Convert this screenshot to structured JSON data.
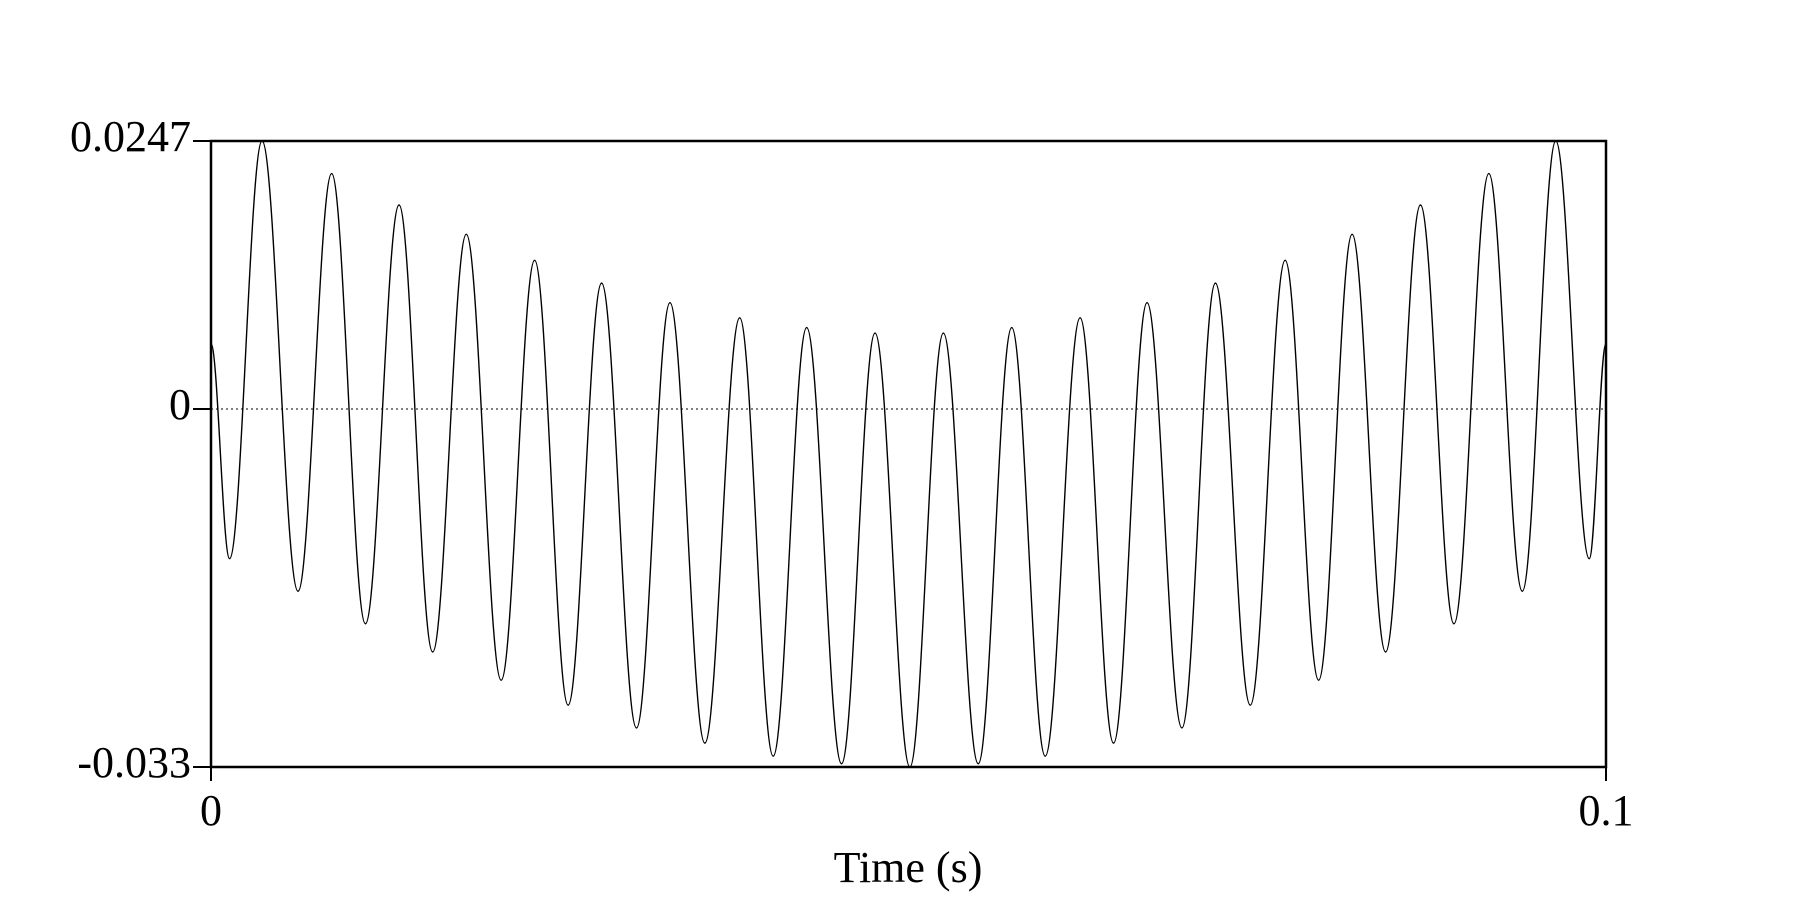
{
  "chart_data": {
    "type": "line",
    "xlabel": "Time (s)",
    "x": [
      0,
      0.00133,
      0.00366,
      0.00624,
      0.00865,
      0.01107,
      0.01348,
      0.01589,
      0.0183,
      0.0208,
      0.0232,
      0.0256,
      0.028,
      0.0305,
      0.0329,
      0.0354,
      0.0379,
      0.0403,
      0.0427,
      0.0452,
      0.0476,
      0.0501,
      0.0525,
      0.055,
      0.0574,
      0.0598,
      0.0623,
      0.0647,
      0.0671,
      0.0696,
      0.072,
      0.0745,
      0.077,
      0.0794,
      0.0818,
      0.0842,
      0.0867,
      0.0891,
      0.0916,
      0.094,
      0.0964,
      0.0988,
      0.1
    ],
    "series": [
      {
        "color": "#000000",
        "values": [
          0.006,
          -0.0138,
          0.0247,
          -0.0168,
          0.0217,
          -0.0198,
          0.0188,
          -0.0224,
          0.0161,
          -0.025,
          0.0137,
          -0.0273,
          0.0116,
          -0.0294,
          0.0098,
          -0.0308,
          0.0084,
          -0.032,
          0.0075,
          -0.0327,
          0.007,
          -0.033,
          0.007,
          -0.0327,
          0.0075,
          -0.032,
          0.0084,
          -0.0308,
          0.0098,
          -0.0294,
          0.0116,
          -0.0273,
          0.0137,
          -0.025,
          0.0161,
          -0.0224,
          0.0188,
          -0.0198,
          0.0217,
          -0.0168,
          0.0247,
          -0.0138,
          0.006
        ]
      }
    ],
    "xlim": [
      0,
      0.1
    ],
    "xticks": [
      0,
      0.1
    ],
    "ylim": [
      -0.033,
      0.0247
    ],
    "yticks": [
      -0.033,
      0,
      0.0247
    ]
  }
}
